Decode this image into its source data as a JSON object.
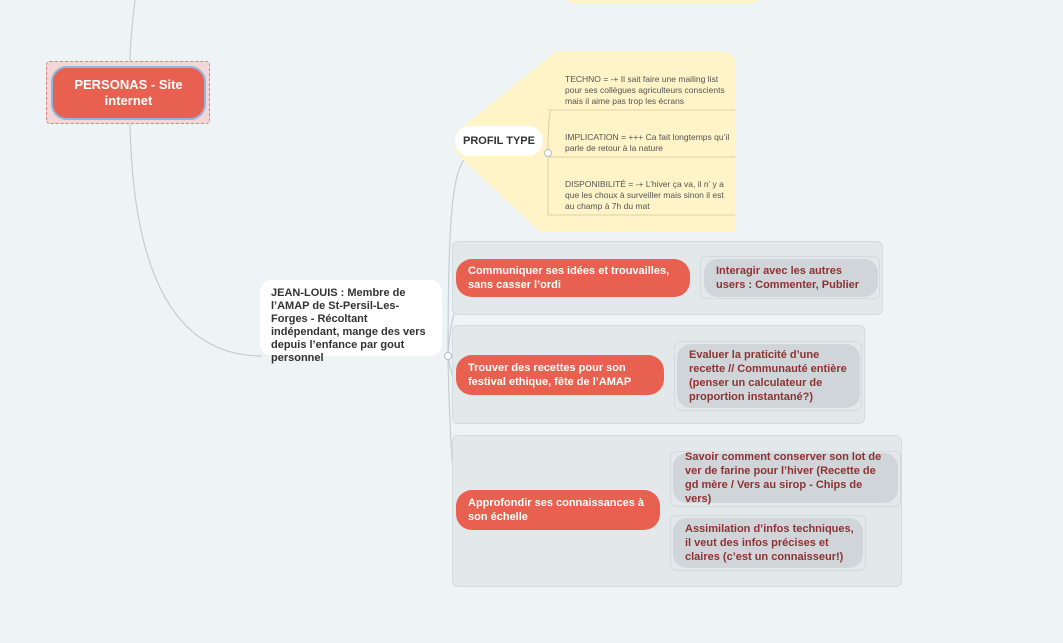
{
  "root": {
    "label": "PERSONAS - Site internet"
  },
  "persona": {
    "label": "JEAN-LOUIS : Membre de l’AMAP de St-Persil-Les-Forges - Récoltant indépendant, mange des vers depuis l’enfance par gout personnel"
  },
  "profile": {
    "label": "PROFIL TYPE",
    "notes": [
      "TECHNO = -+ Il sait faire une mailing list pour ses collègues agriculteurs conscients mais il aime pas trop les écrans",
      "IMPLICATION = +++ Ca fait longtemps qu’il parle de retour à la nature",
      "DISPONIBILITÉ = -+ L’hiver ça va, il n’ y a que les choux à surveiller mais sinon il est au champ à 7h du mat"
    ]
  },
  "goals": [
    {
      "label": "Communiquer ses idées et trouvailles, sans casser l’ordi",
      "subs": [
        "Interagir avec les autres users : Commenter, Publier"
      ]
    },
    {
      "label": "Trouver des recettes pour son festival ethique, fête de l’AMAP",
      "subs": [
        "Evaluer la praticité d’une recette // Communauté entière (penser un calculateur de proportion instantané?)"
      ]
    },
    {
      "label": "Approfondir ses connaissances à son échelle",
      "subs": [
        "Savoir comment conserver son lot de ver de farine pour l’hiver (Recette de gd mère / Vers au sirop - Chips de vers)",
        "Assimilation d’infos techniques, il veut des infos précises et claires (c’est un connaisseur!)"
      ]
    }
  ],
  "colors": {
    "accent": "#e8604f",
    "note": "#fff3c8",
    "background": "#eef3f6",
    "group": "#e3e8eb",
    "subtext": "#8e3232"
  }
}
